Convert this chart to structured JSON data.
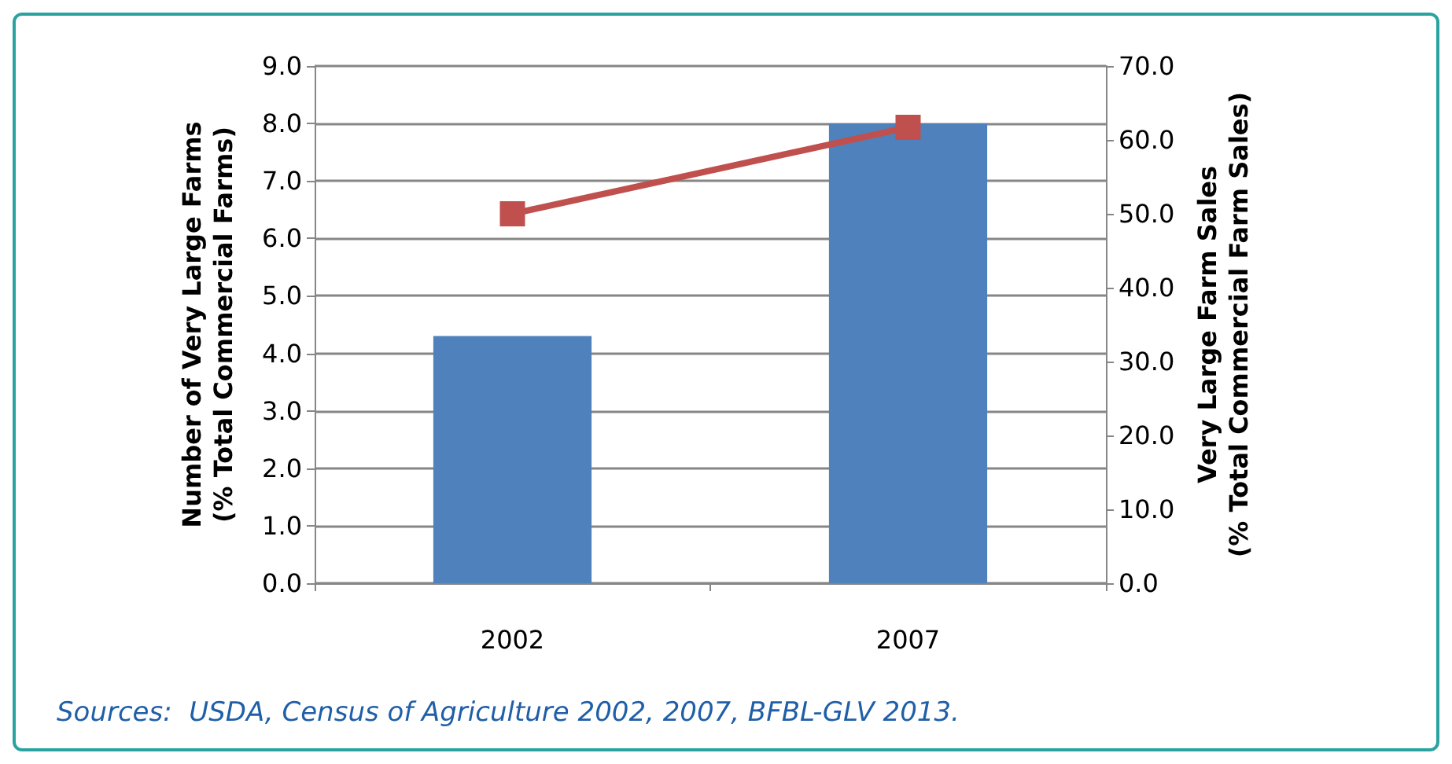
{
  "chart_data": {
    "type": "bar",
    "categories": [
      "2002",
      "2007"
    ],
    "series": [
      {
        "color": "#4f81bd",
        "values": [
          4.3,
          8.0
        ]
      },
      {
        "type": "line",
        "axis": "y2",
        "color": "#c0504d",
        "values": [
          50,
          61.7
        ]
      }
    ],
    "ylabel": "Number of Very Large Farms\n(% Total Commercial Farms)",
    "y2label": "Very Large Farm Sales\n(% Total Commercial Farm Sales)",
    "ylim": [
      0,
      9
    ],
    "yticks": [
      {
        "value": 0,
        "label": "0.0"
      },
      {
        "value": 1,
        "label": "1.0"
      },
      {
        "value": 2,
        "label": "2.0"
      },
      {
        "value": 3,
        "label": "3.0"
      },
      {
        "value": 4,
        "label": "4.0"
      },
      {
        "value": 5,
        "label": "5.0"
      },
      {
        "value": 6,
        "label": "6.0"
      },
      {
        "value": 7,
        "label": "7.0"
      },
      {
        "value": 8,
        "label": "8.0"
      },
      {
        "value": 9,
        "label": "9.0"
      }
    ],
    "y2lim": [
      0,
      70
    ],
    "y2ticks": [
      {
        "value": 0,
        "label": "0.0"
      },
      {
        "value": 10,
        "label": "10.0"
      },
      {
        "value": 20,
        "label": "20.0"
      },
      {
        "value": 30,
        "label": "30.0"
      },
      {
        "value": 40,
        "label": "40.0"
      },
      {
        "value": 50,
        "label": "50.0"
      },
      {
        "value": 60,
        "label": "60.0"
      },
      {
        "value": 70,
        "label": "70.0"
      }
    ],
    "grid": "y",
    "marker": "square",
    "line_style": "solid",
    "annotations": [
      "Sources:  USDA, Census of Agriculture 2002, 2007, BFBL-GLV 2013."
    ]
  }
}
